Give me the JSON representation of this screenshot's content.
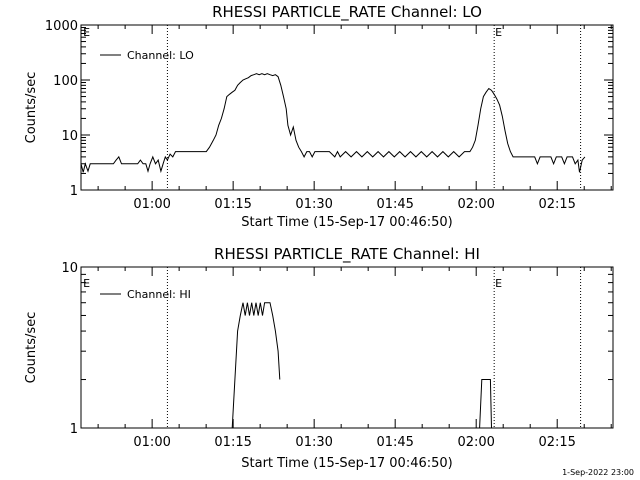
{
  "chart_data": [
    {
      "type": "line",
      "title": "RHESSI PARTICLE_RATE Channel: LO",
      "xlabel": "Start Time (15-Sep-17 00:46:50)",
      "ylabel": "Counts/sec",
      "y_scale": "log",
      "ylim": [
        1,
        1000
      ],
      "y_ticks": [
        {
          "value": 1,
          "label": "1"
        },
        {
          "value": 10,
          "label": "10"
        },
        {
          "value": 100,
          "label": "100"
        },
        {
          "value": 1000,
          "label": "1000"
        }
      ],
      "xlim_minutes_after_start": [
        0,
        98.5
      ],
      "x_ticks": [
        {
          "minutes": 13.17,
          "label": "01:00"
        },
        {
          "minutes": 28.17,
          "label": "01:15"
        },
        {
          "minutes": 43.17,
          "label": "01:30"
        },
        {
          "minutes": 58.17,
          "label": "01:45"
        },
        {
          "minutes": 73.17,
          "label": "02:00"
        },
        {
          "minutes": 88.17,
          "label": "02:15"
        }
      ],
      "marker_lines_minutes": [
        16.0,
        76.5,
        92.5
      ],
      "markers": [
        {
          "minutes": 0.2,
          "label": "E"
        },
        {
          "minutes": 76.5,
          "label": "E"
        }
      ],
      "legend": {
        "label": "Channel: LO",
        "position": "top-left"
      },
      "series": [
        {
          "name": "Channel: LO",
          "points": [
            [
              0.0,
              3.0
            ],
            [
              0.4,
              2.1
            ],
            [
              0.8,
              3.0
            ],
            [
              1.3,
              2.2
            ],
            [
              1.7,
              3.0
            ],
            [
              2.5,
              3.0
            ],
            [
              3.0,
              3.0
            ],
            [
              3.5,
              3.0
            ],
            [
              4.0,
              3.0
            ],
            [
              4.5,
              3.0
            ],
            [
              5.0,
              3.0
            ],
            [
              5.5,
              3.0
            ],
            [
              6.0,
              3.0
            ],
            [
              6.5,
              3.5
            ],
            [
              7.0,
              4.0
            ],
            [
              7.5,
              3.0
            ],
            [
              8.0,
              3.0
            ],
            [
              8.5,
              3.0
            ],
            [
              9.0,
              3.0
            ],
            [
              9.5,
              3.0
            ],
            [
              10.0,
              3.0
            ],
            [
              10.5,
              3.0
            ],
            [
              11.0,
              3.5
            ],
            [
              11.5,
              3.0
            ],
            [
              12.0,
              3.0
            ],
            [
              12.4,
              2.2
            ],
            [
              12.8,
              3.0
            ],
            [
              13.3,
              4.0
            ],
            [
              13.8,
              3.0
            ],
            [
              14.3,
              3.5
            ],
            [
              14.8,
              2.2
            ],
            [
              15.2,
              3.0
            ],
            [
              15.6,
              4.0
            ],
            [
              16.0,
              3.5
            ],
            [
              16.5,
              4.5
            ],
            [
              17.0,
              4.0
            ],
            [
              17.5,
              5.0
            ],
            [
              18.5,
              5.0
            ],
            [
              19.5,
              5.0
            ],
            [
              20.5,
              5.0
            ],
            [
              21.5,
              5.0
            ],
            [
              22.5,
              5.0
            ],
            [
              23.2,
              5.0
            ],
            [
              23.8,
              6.0
            ],
            [
              24.5,
              8.0
            ],
            [
              25.0,
              10.0
            ],
            [
              25.5,
              15.0
            ],
            [
              26.0,
              20.0
            ],
            [
              26.5,
              30.0
            ],
            [
              27.0,
              50.0
            ],
            [
              27.5,
              55.0
            ],
            [
              28.0,
              60.0
            ],
            [
              28.5,
              65.0
            ],
            [
              29.0,
              80.0
            ],
            [
              29.5,
              90.0
            ],
            [
              30.0,
              100.0
            ],
            [
              30.5,
              105.0
            ],
            [
              31.0,
              110.0
            ],
            [
              31.5,
              120.0
            ],
            [
              32.0,
              125.0
            ],
            [
              32.5,
              130.0
            ],
            [
              33.0,
              125.0
            ],
            [
              33.5,
              130.0
            ],
            [
              34.0,
              125.0
            ],
            [
              34.5,
              130.0
            ],
            [
              35.0,
              125.0
            ],
            [
              35.5,
              120.0
            ],
            [
              36.0,
              125.0
            ],
            [
              36.5,
              115.0
            ],
            [
              37.0,
              80.0
            ],
            [
              37.5,
              50.0
            ],
            [
              38.0,
              30.0
            ],
            [
              38.3,
              15.0
            ],
            [
              38.8,
              10.0
            ],
            [
              39.3,
              14.0
            ],
            [
              39.8,
              8.0
            ],
            [
              40.3,
              6.0
            ],
            [
              40.8,
              5.0
            ],
            [
              41.3,
              4.0
            ],
            [
              41.8,
              5.0
            ],
            [
              42.3,
              5.0
            ],
            [
              42.8,
              4.0
            ],
            [
              43.3,
              5.0
            ],
            [
              44.0,
              5.0
            ],
            [
              45.0,
              5.0
            ],
            [
              46.0,
              5.0
            ],
            [
              47.0,
              4.0
            ],
            [
              47.5,
              5.0
            ],
            [
              48.0,
              4.0
            ],
            [
              49.0,
              5.0
            ],
            [
              50.0,
              4.0
            ],
            [
              51.0,
              5.0
            ],
            [
              52.0,
              4.0
            ],
            [
              53.0,
              5.0
            ],
            [
              54.0,
              4.0
            ],
            [
              55.0,
              5.0
            ],
            [
              56.0,
              4.0
            ],
            [
              57.0,
              5.0
            ],
            [
              58.0,
              4.0
            ],
            [
              59.0,
              5.0
            ],
            [
              60.0,
              4.0
            ],
            [
              61.0,
              5.0
            ],
            [
              62.0,
              4.0
            ],
            [
              63.0,
              5.0
            ],
            [
              64.0,
              4.0
            ],
            [
              65.0,
              5.0
            ],
            [
              66.0,
              4.0
            ],
            [
              67.0,
              5.0
            ],
            [
              68.0,
              4.0
            ],
            [
              69.0,
              5.0
            ],
            [
              70.0,
              4.0
            ],
            [
              71.0,
              5.0
            ],
            [
              72.0,
              5.0
            ],
            [
              72.5,
              6.0
            ],
            [
              73.0,
              8.0
            ],
            [
              73.5,
              15.0
            ],
            [
              74.0,
              30.0
            ],
            [
              74.5,
              50.0
            ],
            [
              75.0,
              60.0
            ],
            [
              75.5,
              70.0
            ],
            [
              76.0,
              65.0
            ],
            [
              76.5,
              55.0
            ],
            [
              77.0,
              45.0
            ],
            [
              77.5,
              35.0
            ],
            [
              78.0,
              22.0
            ],
            [
              78.5,
              12.0
            ],
            [
              79.0,
              7.0
            ],
            [
              79.5,
              5.0
            ],
            [
              80.0,
              4.0
            ],
            [
              81.0,
              4.0
            ],
            [
              82.0,
              4.0
            ],
            [
              83.0,
              4.0
            ],
            [
              84.0,
              4.0
            ],
            [
              84.5,
              3.0
            ],
            [
              85.0,
              4.0
            ],
            [
              86.0,
              4.0
            ],
            [
              87.0,
              4.0
            ],
            [
              87.5,
              3.0
            ],
            [
              88.0,
              4.0
            ],
            [
              89.0,
              4.0
            ],
            [
              89.5,
              3.0
            ],
            [
              90.0,
              4.0
            ],
            [
              91.0,
              4.0
            ],
            [
              91.5,
              3.0
            ],
            [
              92.0,
              3.5
            ],
            [
              92.3,
              2.1
            ],
            [
              92.8,
              3.5
            ],
            [
              93.3,
              4.0
            ]
          ]
        }
      ]
    },
    {
      "type": "line",
      "title": "RHESSI PARTICLE_RATE Channel: HI",
      "xlabel": "Start Time (15-Sep-17 00:46:50)",
      "ylabel": "Counts/sec",
      "y_scale": "log",
      "ylim": [
        1,
        10
      ],
      "y_ticks": [
        {
          "value": 1,
          "label": "1"
        },
        {
          "value": 10,
          "label": "10"
        }
      ],
      "xlim_minutes_after_start": [
        0,
        98.5
      ],
      "x_ticks": [
        {
          "minutes": 13.17,
          "label": "01:00"
        },
        {
          "minutes": 28.17,
          "label": "01:15"
        },
        {
          "minutes": 43.17,
          "label": "01:30"
        },
        {
          "minutes": 58.17,
          "label": "01:45"
        },
        {
          "minutes": 73.17,
          "label": "02:00"
        },
        {
          "minutes": 88.17,
          "label": "02:15"
        }
      ],
      "marker_lines_minutes": [
        16.0,
        76.5,
        92.5
      ],
      "markers": [
        {
          "minutes": 0.2,
          "label": "E"
        },
        {
          "minutes": 76.5,
          "label": "E"
        }
      ],
      "legend": {
        "label": "Channel: HI",
        "position": "top-left"
      },
      "series": [
        {
          "name": "Channel: HI",
          "segments": [
            [
              [
                28.0,
                1.0
              ],
              [
                28.5,
                2.0
              ],
              [
                29.0,
                4.0
              ],
              [
                29.5,
                5.0
              ],
              [
                30.0,
                6.0
              ],
              [
                30.4,
                5.0
              ],
              [
                30.8,
                6.0
              ],
              [
                31.2,
                5.0
              ],
              [
                31.6,
                6.0
              ],
              [
                32.0,
                5.0
              ],
              [
                32.4,
                6.0
              ],
              [
                32.8,
                5.0
              ],
              [
                33.2,
                6.0
              ],
              [
                33.6,
                5.0
              ],
              [
                34.0,
                6.0
              ],
              [
                34.5,
                6.0
              ],
              [
                35.0,
                6.0
              ],
              [
                35.5,
                5.0
              ],
              [
                36.0,
                4.0
              ],
              [
                36.5,
                3.0
              ],
              [
                36.8,
                2.0
              ]
            ],
            [
              [
                73.8,
                1.0
              ],
              [
                74.2,
                2.0
              ],
              [
                75.8,
                2.0
              ],
              [
                76.0,
                1.0
              ]
            ]
          ]
        }
      ]
    }
  ],
  "footer": {
    "timestamp": "1-Sep-2022 23:00"
  }
}
